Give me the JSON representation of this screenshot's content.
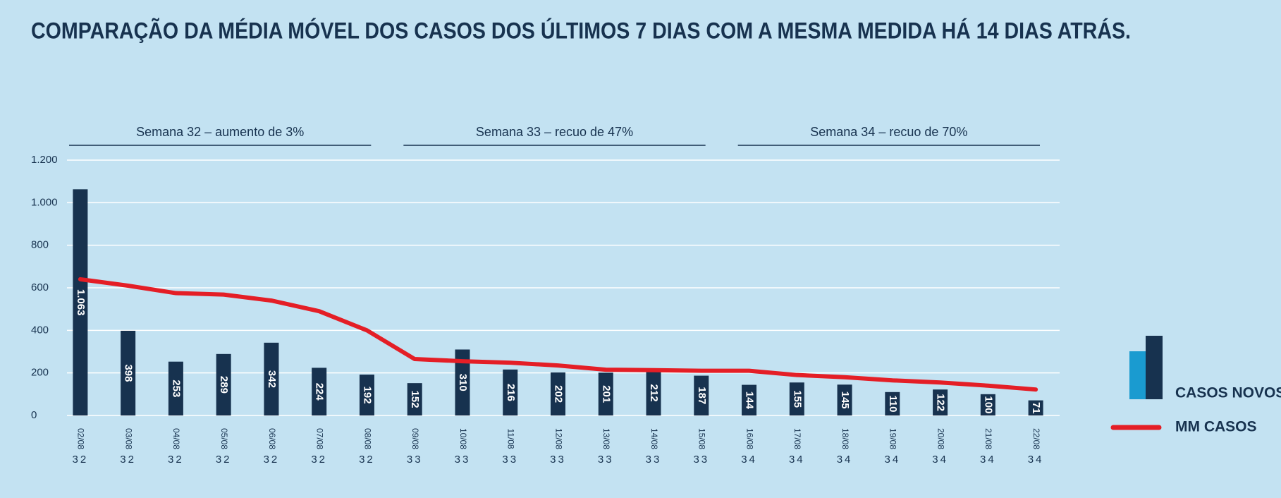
{
  "chart_data": {
    "type": "bar_line",
    "title": "COMPARAÇÃO DA MÉDIA MÓVEL DOS CASOS DOS ÚLTIMOS 7 DIAS COM A MESMA MEDIDA HÁ 14 DIAS ATRÁS.",
    "week_groups": [
      "Semana 32 – aumento de 3%",
      "Semana 33 – recuo de 47%",
      "Semana 34 – recuo de 70%"
    ],
    "categories": [
      "02/08",
      "03/08",
      "04/08",
      "05/08",
      "06/08",
      "07/08",
      "08/08",
      "09/08",
      "10/08",
      "11/08",
      "12/08",
      "13/08",
      "14/08",
      "15/08",
      "16/08",
      "17/08",
      "18/08",
      "19/08",
      "20/08",
      "21/08",
      "22/08"
    ],
    "week_labels": [
      "32",
      "32",
      "32",
      "32",
      "32",
      "32",
      "32",
      "33",
      "33",
      "33",
      "33",
      "33",
      "33",
      "33",
      "34",
      "34",
      "34",
      "34",
      "34",
      "34",
      "34"
    ],
    "series": [
      {
        "name": "CASOS NOVOS",
        "type": "bar",
        "color": "#17324f",
        "values": [
          1063,
          398,
          253,
          289,
          342,
          224,
          192,
          152,
          310,
          216,
          202,
          201,
          212,
          187,
          144,
          155,
          145,
          110,
          122,
          100,
          71
        ],
        "value_labels": [
          "1.063",
          "398",
          "253",
          "289",
          "342",
          "224",
          "192",
          "152",
          "310",
          "216",
          "202",
          "201",
          "212",
          "187",
          "144",
          "155",
          "145",
          "110",
          "122",
          "100",
          "71"
        ]
      },
      {
        "name": "MM CASOS",
        "type": "line",
        "color": "#e41e26",
        "values": [
          640,
          610,
          575,
          568,
          540,
          490,
          400,
          265,
          255,
          248,
          235,
          215,
          213,
          210,
          210,
          190,
          180,
          165,
          155,
          140,
          122
        ]
      }
    ],
    "ylim": [
      0,
      1200
    ],
    "yticks": [
      0,
      200,
      400,
      600,
      800,
      {
        "value": 1000,
        "label": "1.000"
      },
      {
        "value": 1200,
        "label": "1.200"
      }
    ],
    "grid": true
  }
}
